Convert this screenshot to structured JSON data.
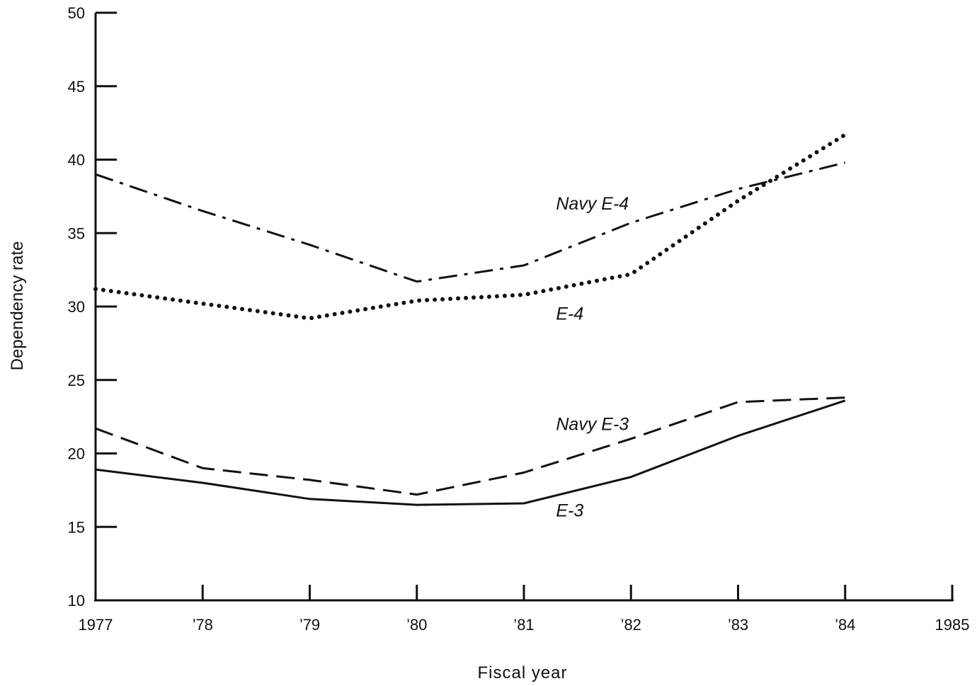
{
  "chart_data": {
    "type": "line",
    "xlabel": "Fiscal year",
    "ylabel": "Dependency rate",
    "xlim": [
      1977,
      1985
    ],
    "ylim": [
      10,
      50
    ],
    "y_ticks": [
      10,
      15,
      20,
      25,
      30,
      35,
      40,
      45,
      50
    ],
    "x_ticks": [
      {
        "value": 1977,
        "label": "1977"
      },
      {
        "value": 1978,
        "label": "'78"
      },
      {
        "value": 1979,
        "label": "'79"
      },
      {
        "value": 1980,
        "label": "'80"
      },
      {
        "value": 1981,
        "label": "'81"
      },
      {
        "value": 1982,
        "label": "'82"
      },
      {
        "value": 1983,
        "label": "'83"
      },
      {
        "value": 1984,
        "label": "'84"
      },
      {
        "value": 1985,
        "label": "1985"
      }
    ],
    "grid": false,
    "legend": "none",
    "series": [
      {
        "name": "Navy E-4",
        "style": "dash-dot",
        "x": [
          1977,
          1978,
          1979,
          1980,
          1981,
          1982,
          1983,
          1984
        ],
        "values": [
          39.0,
          36.5,
          34.2,
          31.7,
          32.8,
          35.7,
          38.0,
          39.8
        ]
      },
      {
        "name": "E-4",
        "style": "dotted",
        "x": [
          1977,
          1978,
          1979,
          1980,
          1981,
          1982,
          1983,
          1984
        ],
        "values": [
          31.2,
          30.2,
          29.2,
          30.4,
          30.8,
          32.2,
          37.2,
          41.7
        ]
      },
      {
        "name": "Navy E-3",
        "style": "dashed",
        "x": [
          1977,
          1978,
          1979,
          1980,
          1981,
          1982,
          1983,
          1984
        ],
        "values": [
          21.7,
          19.0,
          18.2,
          17.2,
          18.7,
          21.0,
          23.5,
          23.8
        ]
      },
      {
        "name": "E-3",
        "style": "solid",
        "x": [
          1977,
          1978,
          1979,
          1980,
          1981,
          1982,
          1983,
          1984
        ],
        "values": [
          18.9,
          18.0,
          16.9,
          16.5,
          16.6,
          18.4,
          21.2,
          23.6
        ]
      }
    ]
  }
}
